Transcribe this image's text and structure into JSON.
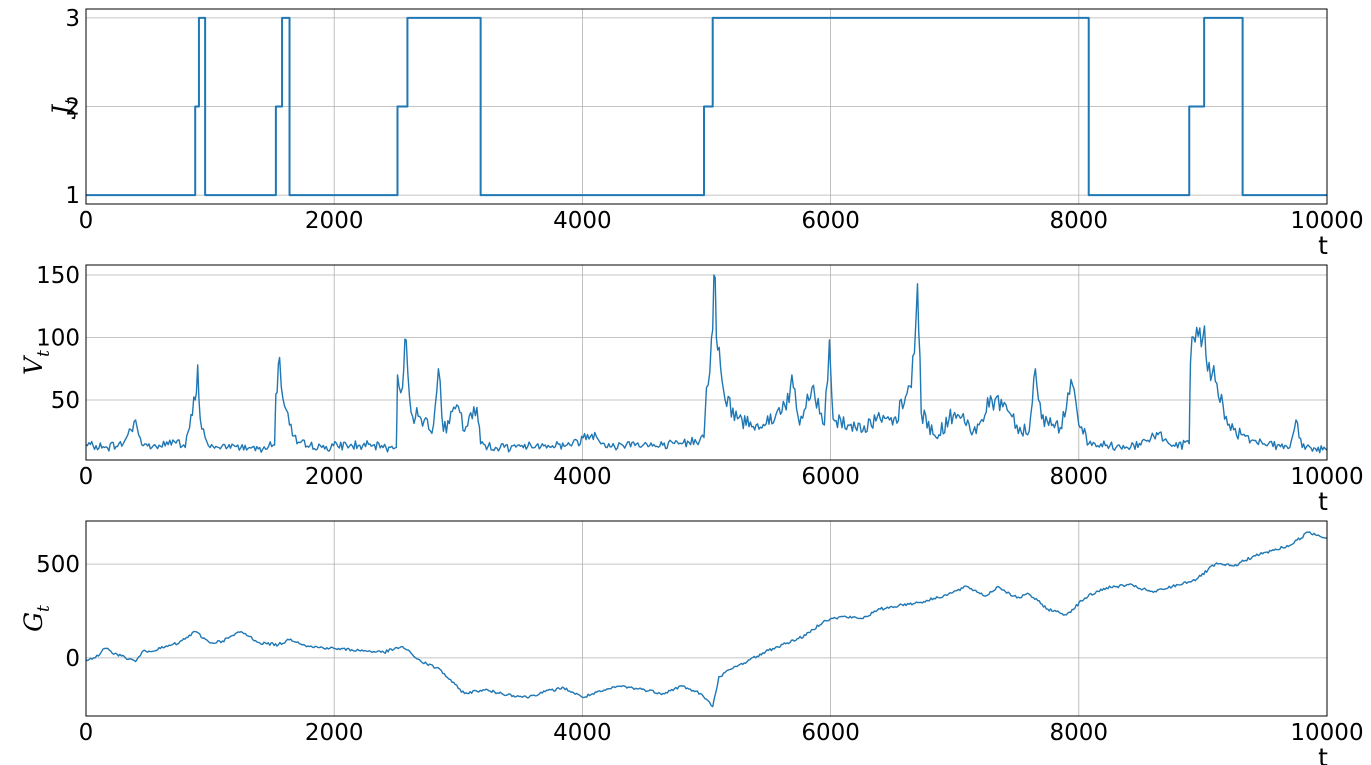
{
  "chart_data": [
    {
      "type": "line",
      "ylabel": "J",
      "ylabel_sub": "t",
      "xlabel": "t",
      "xlim": [
        0,
        10000
      ],
      "ylim": [
        0.9,
        3.1
      ],
      "xticks": [
        0,
        2000,
        4000,
        6000,
        8000,
        10000
      ],
      "yticks": [
        1,
        2,
        3
      ],
      "grid": true,
      "color": "#1f77b4",
      "steps": [
        [
          0,
          1
        ],
        [
          880,
          2
        ],
        [
          910,
          3
        ],
        [
          960,
          1
        ],
        [
          1530,
          2
        ],
        [
          1580,
          3
        ],
        [
          1640,
          1
        ],
        [
          2510,
          2
        ],
        [
          2590,
          3
        ],
        [
          3180,
          1
        ],
        [
          4980,
          2
        ],
        [
          5050,
          3
        ],
        [
          8080,
          1
        ],
        [
          8890,
          2
        ],
        [
          9010,
          3
        ],
        [
          9320,
          1
        ],
        [
          10000,
          1
        ]
      ]
    },
    {
      "type": "line",
      "ylabel": "V",
      "ylabel_sub": "t",
      "xlabel": "t",
      "xlim": [
        0,
        10000
      ],
      "ylim": [
        2,
        158
      ],
      "xticks": [
        0,
        2000,
        4000,
        6000,
        8000,
        10000
      ],
      "yticks": [
        50,
        100,
        150
      ],
      "grid": true,
      "color": "#1f77b4",
      "points": [
        [
          0,
          14
        ],
        [
          150,
          12
        ],
        [
          300,
          15
        ],
        [
          400,
          34
        ],
        [
          450,
          14
        ],
        [
          600,
          13
        ],
        [
          700,
          18
        ],
        [
          800,
          12
        ],
        [
          880,
          50
        ],
        [
          900,
          78
        ],
        [
          920,
          35
        ],
        [
          960,
          20
        ],
        [
          1000,
          12
        ],
        [
          1200,
          13
        ],
        [
          1400,
          12
        ],
        [
          1520,
          14
        ],
        [
          1530,
          55
        ],
        [
          1560,
          84
        ],
        [
          1600,
          45
        ],
        [
          1640,
          30
        ],
        [
          1700,
          15
        ],
        [
          1900,
          12
        ],
        [
          2100,
          14
        ],
        [
          2300,
          13
        ],
        [
          2500,
          12
        ],
        [
          2510,
          70
        ],
        [
          2550,
          60
        ],
        [
          2580,
          98
        ],
        [
          2620,
          40
        ],
        [
          2700,
          35
        ],
        [
          2800,
          30
        ],
        [
          2840,
          75
        ],
        [
          2880,
          25
        ],
        [
          3000,
          45
        ],
        [
          3050,
          25
        ],
        [
          3150,
          44
        ],
        [
          3180,
          15
        ],
        [
          3300,
          12
        ],
        [
          3500,
          13
        ],
        [
          3700,
          14
        ],
        [
          3900,
          14
        ],
        [
          4100,
          24
        ],
        [
          4200,
          12
        ],
        [
          4400,
          16
        ],
        [
          4600,
          13
        ],
        [
          4800,
          15
        ],
        [
          4980,
          20
        ],
        [
          5000,
          60
        ],
        [
          5040,
          100
        ],
        [
          5060,
          150
        ],
        [
          5090,
          90
        ],
        [
          5150,
          50
        ],
        [
          5250,
          35
        ],
        [
          5400,
          30
        ],
        [
          5550,
          35
        ],
        [
          5700,
          60
        ],
        [
          5750,
          30
        ],
        [
          5850,
          60
        ],
        [
          5950,
          30
        ],
        [
          5990,
          98
        ],
        [
          6020,
          35
        ],
        [
          6200,
          28
        ],
        [
          6400,
          35
        ],
        [
          6500,
          30
        ],
        [
          6650,
          60
        ],
        [
          6700,
          143
        ],
        [
          6730,
          40
        ],
        [
          6850,
          20
        ],
        [
          7000,
          40
        ],
        [
          7150,
          25
        ],
        [
          7300,
          50
        ],
        [
          7400,
          48
        ],
        [
          7500,
          30
        ],
        [
          7600,
          25
        ],
        [
          7650,
          75
        ],
        [
          7700,
          35
        ],
        [
          7850,
          28
        ],
        [
          7950,
          62
        ],
        [
          8000,
          30
        ],
        [
          8080,
          15
        ],
        [
          8300,
          12
        ],
        [
          8500,
          14
        ],
        [
          8650,
          24
        ],
        [
          8750,
          13
        ],
        [
          8890,
          15
        ],
        [
          8900,
          80
        ],
        [
          8950,
          108
        ],
        [
          9000,
          100
        ],
        [
          9050,
          80
        ],
        [
          9100,
          65
        ],
        [
          9200,
          30
        ],
        [
          9320,
          22
        ],
        [
          9400,
          18
        ],
        [
          9600,
          14
        ],
        [
          9700,
          12
        ],
        [
          9750,
          34
        ],
        [
          9800,
          12
        ],
        [
          10000,
          10
        ]
      ]
    },
    {
      "type": "line",
      "ylabel": "G",
      "ylabel_sub": "t",
      "xlabel": "t",
      "xlim": [
        0,
        10000
      ],
      "ylim": [
        -310,
        730
      ],
      "xticks": [
        0,
        2000,
        4000,
        6000,
        8000,
        10000
      ],
      "yticks": [
        0,
        500
      ],
      "grid": true,
      "color": "#1f77b4",
      "points": [
        [
          0,
          -10
        ],
        [
          100,
          10
        ],
        [
          150,
          50
        ],
        [
          250,
          20
        ],
        [
          400,
          -20
        ],
        [
          450,
          30
        ],
        [
          600,
          50
        ],
        [
          750,
          80
        ],
        [
          880,
          140
        ],
        [
          1000,
          80
        ],
        [
          1100,
          90
        ],
        [
          1250,
          140
        ],
        [
          1400,
          80
        ],
        [
          1550,
          70
        ],
        [
          1650,
          100
        ],
        [
          1800,
          60
        ],
        [
          2000,
          50
        ],
        [
          2200,
          40
        ],
        [
          2400,
          30
        ],
        [
          2550,
          60
        ],
        [
          2700,
          -20
        ],
        [
          2850,
          -60
        ],
        [
          2950,
          -130
        ],
        [
          3050,
          -190
        ],
        [
          3200,
          -170
        ],
        [
          3350,
          -190
        ],
        [
          3550,
          -210
        ],
        [
          3700,
          -180
        ],
        [
          3850,
          -160
        ],
        [
          4000,
          -210
        ],
        [
          4150,
          -180
        ],
        [
          4300,
          -150
        ],
        [
          4500,
          -170
        ],
        [
          4650,
          -190
        ],
        [
          4800,
          -150
        ],
        [
          4950,
          -190
        ],
        [
          5050,
          -260
        ],
        [
          5100,
          -100
        ],
        [
          5200,
          -60
        ],
        [
          5350,
          -10
        ],
        [
          5500,
          40
        ],
        [
          5650,
          80
        ],
        [
          5800,
          120
        ],
        [
          5950,
          200
        ],
        [
          6100,
          220
        ],
        [
          6250,
          210
        ],
        [
          6400,
          260
        ],
        [
          6550,
          280
        ],
        [
          6750,
          300
        ],
        [
          6950,
          340
        ],
        [
          7100,
          380
        ],
        [
          7250,
          330
        ],
        [
          7350,
          380
        ],
        [
          7500,
          320
        ],
        [
          7600,
          340
        ],
        [
          7750,
          260
        ],
        [
          7900,
          230
        ],
        [
          8050,
          320
        ],
        [
          8200,
          370
        ],
        [
          8400,
          390
        ],
        [
          8600,
          350
        ],
        [
          8800,
          390
        ],
        [
          8950,
          420
        ],
        [
          9100,
          500
        ],
        [
          9250,
          490
        ],
        [
          9400,
          540
        ],
        [
          9550,
          570
        ],
        [
          9700,
          600
        ],
        [
          9850,
          670
        ],
        [
          10000,
          640
        ]
      ]
    }
  ]
}
